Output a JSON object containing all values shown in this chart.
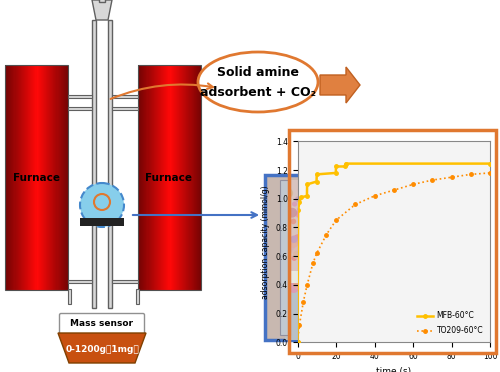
{
  "graph": {
    "xlim": [
      0,
      100
    ],
    "ylim": [
      0.0,
      1.4
    ],
    "xlabel": "time (s)",
    "ylabel": "adsorption capacity (mmol/g)",
    "xticks": [
      0,
      20,
      40,
      60,
      80,
      100
    ],
    "yticks": [
      0.0,
      0.2,
      0.4,
      0.6,
      0.8,
      1.0,
      1.2,
      1.4
    ],
    "MFB_color": "#FFC000",
    "TO209_color": "#FF8C00",
    "MFB_label": "MFB-60°C",
    "TO209_label": "TO209-60°C",
    "MFB_t": [
      0,
      0.3,
      1,
      2,
      4.9,
      5.0,
      9.9,
      10.0,
      19.9,
      20.0,
      24.9,
      25.0,
      100
    ],
    "MFB_v": [
      0,
      0.92,
      0.98,
      1.01,
      1.02,
      1.1,
      1.12,
      1.17,
      1.18,
      1.225,
      1.225,
      1.245,
      1.245
    ],
    "TO209_t": [
      0,
      1,
      3,
      5,
      8,
      10,
      15,
      20,
      30,
      40,
      50,
      60,
      70,
      80,
      90,
      100
    ],
    "TO209_v": [
      0,
      0.12,
      0.28,
      0.4,
      0.55,
      0.62,
      0.75,
      0.85,
      0.96,
      1.02,
      1.06,
      1.1,
      1.13,
      1.15,
      1.17,
      1.18
    ]
  },
  "ellipse_text_1": "Solid amine",
  "ellipse_text_2": "adsorbent + CO₂",
  "ellipse_color": "#E07830",
  "furnace_label": "Furnace",
  "mass_sensor_label": "Mass sensor",
  "mass_range_label": "0-1200g（1mg）",
  "graph_border_color": "#E07830",
  "photo_border_color": "#4472C4",
  "bg_color": "#FFFFFF",
  "tube_color": "#D8D8D8",
  "tube_edge": "#606060",
  "pipe_color": "#707070",
  "sample_fill": "#87CEEB",
  "sample_edge": "#4488CC",
  "orange_ring": "#E07830",
  "black_bar": "#222222",
  "ms_box_color": "#F0E0C0",
  "ms_trap_color": "#C85010"
}
